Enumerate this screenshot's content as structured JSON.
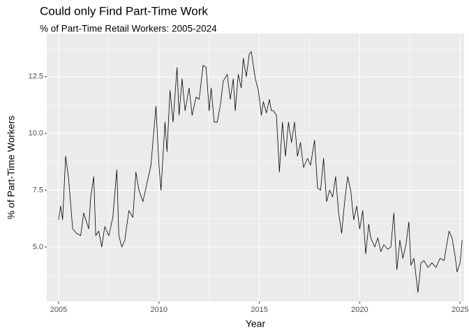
{
  "chart_data": {
    "type": "line",
    "title": "Could only Find Part-Time Work",
    "subtitle": "% of Part-Time Retail Workers: 2005-2024",
    "x_label": "Year",
    "y_label": "% of Part-Time Workers",
    "color": "#000000",
    "grid": true,
    "xlim": [
      2004.41,
      2025.2
    ],
    "ylim": [
      2.6,
      14.4
    ],
    "xticks": [
      2005,
      2010,
      2015,
      2020,
      2025
    ],
    "yticks": [
      {
        "value": 5,
        "label": "5.0"
      },
      {
        "value": 7.5,
        "label": "7.5"
      },
      {
        "value": 10,
        "label": "10.0"
      },
      {
        "value": 12.5,
        "label": "12.5"
      }
    ],
    "x": [
      2005.0,
      2005.1,
      2005.2,
      2005.35,
      2005.5,
      2005.7,
      2005.9,
      2006.1,
      2006.25,
      2006.5,
      2006.6,
      2006.75,
      2006.85,
      2007.0,
      2007.15,
      2007.3,
      2007.5,
      2007.7,
      2007.9,
      2008.0,
      2008.15,
      2008.3,
      2008.5,
      2008.7,
      2008.85,
      2009.0,
      2009.2,
      2009.4,
      2009.6,
      2009.85,
      2010.0,
      2010.1,
      2010.3,
      2010.4,
      2010.55,
      2010.7,
      2010.9,
      2011.0,
      2011.15,
      2011.3,
      2011.5,
      2011.65,
      2011.85,
      2012.0,
      2012.2,
      2012.35,
      2012.5,
      2012.6,
      2012.75,
      2012.9,
      2013.05,
      2013.2,
      2013.4,
      2013.55,
      2013.7,
      2013.8,
      2013.95,
      2014.1,
      2014.2,
      2014.35,
      2014.5,
      2014.6,
      2014.8,
      2014.95,
      2015.1,
      2015.2,
      2015.35,
      2015.5,
      2015.6,
      2015.7,
      2015.85,
      2016.0,
      2016.15,
      2016.3,
      2016.45,
      2016.6,
      2016.75,
      2016.9,
      2017.05,
      2017.2,
      2017.4,
      2017.55,
      2017.75,
      2017.9,
      2018.05,
      2018.2,
      2018.35,
      2018.5,
      2018.65,
      2018.8,
      2018.95,
      2019.1,
      2019.25,
      2019.4,
      2019.55,
      2019.7,
      2019.85,
      2020.0,
      2020.15,
      2020.3,
      2020.45,
      2020.55,
      2020.75,
      2020.9,
      2021.05,
      2021.2,
      2021.4,
      2021.55,
      2021.7,
      2021.85,
      2022.0,
      2022.15,
      2022.3,
      2022.45,
      2022.55,
      2022.7,
      2022.9,
      2023.05,
      2023.2,
      2023.4,
      2023.6,
      2023.8,
      2024.0,
      2024.2,
      2024.45,
      2024.6,
      2024.75,
      2024.85,
      2025.0,
      2025.1
    ],
    "values": [
      6.2,
      6.8,
      6.2,
      9.0,
      8.0,
      5.8,
      5.6,
      5.5,
      6.5,
      5.8,
      7.2,
      8.1,
      5.5,
      5.7,
      5.0,
      5.9,
      5.5,
      6.3,
      8.4,
      5.5,
      5.0,
      5.3,
      6.6,
      6.3,
      8.3,
      7.5,
      7.0,
      7.8,
      8.6,
      11.2,
      8.6,
      7.5,
      10.5,
      9.2,
      11.9,
      10.5,
      12.9,
      10.8,
      12.4,
      11.0,
      12.0,
      10.8,
      11.6,
      11.5,
      13.0,
      12.9,
      11.0,
      12.0,
      10.5,
      10.5,
      11.2,
      12.3,
      12.6,
      11.5,
      12.4,
      11.0,
      12.6,
      12.0,
      13.3,
      12.5,
      13.5,
      13.6,
      12.4,
      11.9,
      10.8,
      11.4,
      10.9,
      11.5,
      11.0,
      11.0,
      10.8,
      8.3,
      10.5,
      9.0,
      10.5,
      9.6,
      10.5,
      9.0,
      9.6,
      8.5,
      8.9,
      8.6,
      9.7,
      7.6,
      7.5,
      8.9,
      7.0,
      7.5,
      7.2,
      8.1,
      6.5,
      5.6,
      7.0,
      8.1,
      7.5,
      6.2,
      6.8,
      5.8,
      6.6,
      4.7,
      6.0,
      5.4,
      5.0,
      5.4,
      4.8,
      5.1,
      4.9,
      5.0,
      6.5,
      4.0,
      5.3,
      4.5,
      5.1,
      6.1,
      4.2,
      4.5,
      3.0,
      4.3,
      4.4,
      4.1,
      4.3,
      4.1,
      4.5,
      4.4,
      5.7,
      5.4,
      4.6,
      3.9,
      4.3,
      5.3
    ]
  }
}
